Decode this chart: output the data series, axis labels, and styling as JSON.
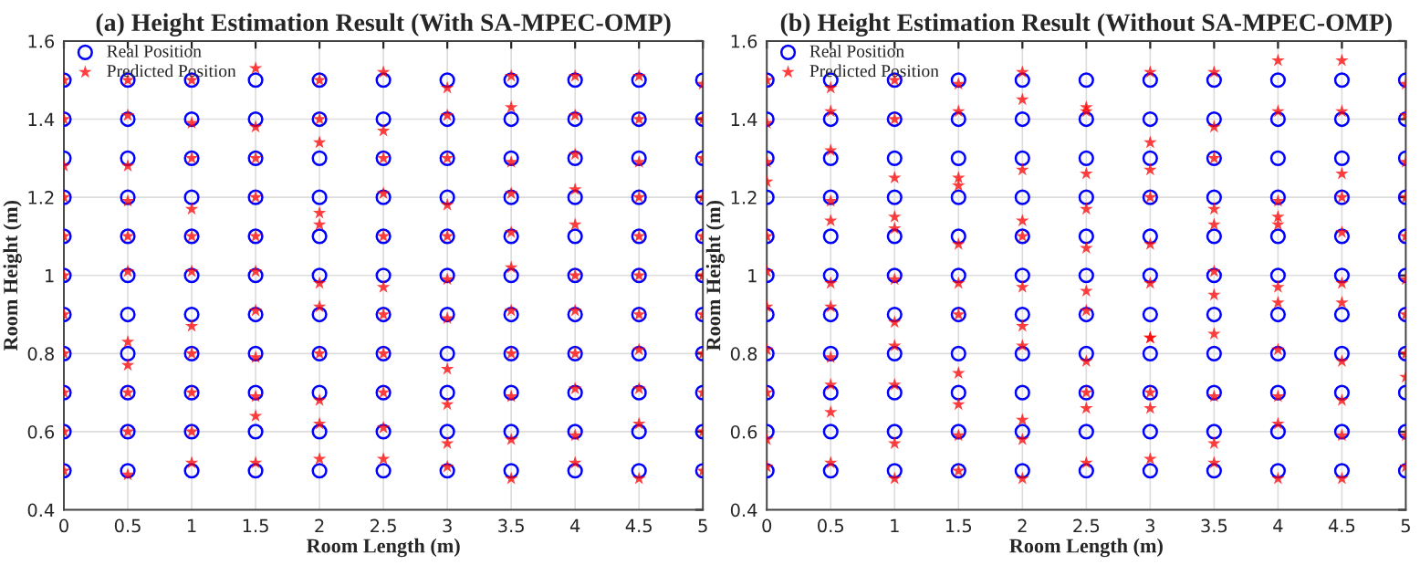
{
  "chart_data": [
    {
      "type": "scatter",
      "title": "(a) Height Estimation Result (With SA-MPEC-OMP)",
      "xlabel": "Room Length (m)",
      "ylabel": "Room Height (m)",
      "xlim": [
        0,
        5
      ],
      "xticks": [
        0,
        0.5,
        1,
        1.5,
        2,
        2.5,
        3,
        3.5,
        4,
        4.5,
        5
      ],
      "ylim": [
        0.4,
        1.6
      ],
      "yticks": [
        0.4,
        0.6,
        0.8,
        1,
        1.2,
        1.4,
        1.6
      ],
      "grid": true,
      "legend": "top left",
      "series": [
        {
          "name": "Real Position",
          "color": "#0000ff",
          "marker": "circle",
          "x": [
            0,
            0,
            0,
            0,
            0,
            0,
            0,
            0,
            0,
            0,
            0,
            0.5,
            0.5,
            0.5,
            0.5,
            0.5,
            0.5,
            0.5,
            0.5,
            0.5,
            0.5,
            0.5,
            1,
            1,
            1,
            1,
            1,
            1,
            1,
            1,
            1,
            1,
            1,
            1.5,
            1.5,
            1.5,
            1.5,
            1.5,
            1.5,
            1.5,
            1.5,
            1.5,
            1.5,
            1.5,
            2,
            2,
            2,
            2,
            2,
            2,
            2,
            2,
            2,
            2,
            2,
            2.5,
            2.5,
            2.5,
            2.5,
            2.5,
            2.5,
            2.5,
            2.5,
            2.5,
            2.5,
            2.5,
            3,
            3,
            3,
            3,
            3,
            3,
            3,
            3,
            3,
            3,
            3,
            3.5,
            3.5,
            3.5,
            3.5,
            3.5,
            3.5,
            3.5,
            3.5,
            3.5,
            3.5,
            3.5,
            4,
            4,
            4,
            4,
            4,
            4,
            4,
            4,
            4,
            4,
            4,
            4.5,
            4.5,
            4.5,
            4.5,
            4.5,
            4.5,
            4.5,
            4.5,
            4.5,
            4.5,
            4.5,
            5,
            5,
            5,
            5,
            5,
            5,
            5,
            5,
            5,
            5,
            5
          ],
          "values": [
            1.5,
            1.4,
            1.3,
            1.2,
            1.1,
            1.0,
            0.9,
            0.8,
            0.7,
            0.6,
            0.5,
            1.5,
            1.4,
            1.3,
            1.2,
            1.1,
            1.0,
            0.9,
            0.8,
            0.7,
            0.6,
            0.5,
            1.5,
            1.4,
            1.3,
            1.2,
            1.1,
            1.0,
            0.9,
            0.8,
            0.7,
            0.6,
            0.5,
            1.5,
            1.4,
            1.3,
            1.2,
            1.1,
            1.0,
            0.9,
            0.8,
            0.7,
            0.6,
            0.5,
            1.5,
            1.4,
            1.3,
            1.2,
            1.1,
            1.0,
            0.9,
            0.8,
            0.7,
            0.6,
            0.5,
            1.5,
            1.4,
            1.3,
            1.2,
            1.1,
            1.0,
            0.9,
            0.8,
            0.7,
            0.6,
            0.5,
            1.5,
            1.4,
            1.3,
            1.2,
            1.1,
            1.0,
            0.9,
            0.8,
            0.7,
            0.6,
            0.5,
            1.5,
            1.4,
            1.3,
            1.2,
            1.1,
            1.0,
            0.9,
            0.8,
            0.7,
            0.6,
            0.5,
            1.5,
            1.4,
            1.3,
            1.2,
            1.1,
            1.0,
            0.9,
            0.8,
            0.7,
            0.6,
            0.5,
            1.5,
            1.4,
            1.3,
            1.2,
            1.1,
            1.0,
            0.9,
            0.8,
            0.7,
            0.6,
            0.5,
            1.5,
            1.4,
            1.3,
            1.2,
            1.1,
            1.0,
            0.9,
            0.8,
            0.7,
            0.6,
            0.5
          ]
        },
        {
          "name": "Predicted Position",
          "color": "#ff0000",
          "marker": "star",
          "x": [
            0,
            0,
            0,
            0,
            0,
            0,
            0,
            0,
            0,
            0,
            0,
            0.5,
            0.5,
            0.5,
            0.5,
            0.5,
            0.5,
            0.5,
            0.5,
            0.5,
            0.5,
            0.5,
            1,
            1,
            1,
            1,
            1,
            1,
            1,
            1,
            1,
            1,
            1,
            1.5,
            1.5,
            1.5,
            1.5,
            1.5,
            1.5,
            1.5,
            1.5,
            1.5,
            1.5,
            1.5,
            2,
            2,
            2,
            2,
            2,
            2,
            2,
            2,
            2,
            2,
            2,
            2.5,
            2.5,
            2.5,
            2.5,
            2.5,
            2.5,
            2.5,
            2.5,
            2.5,
            2.5,
            2.5,
            3,
            3,
            3,
            3,
            3,
            3,
            3,
            3,
            3,
            3,
            3,
            3.5,
            3.5,
            3.5,
            3.5,
            3.5,
            3.5,
            3.5,
            3.5,
            3.5,
            3.5,
            3.5,
            4,
            4,
            4,
            4,
            4,
            4,
            4,
            4,
            4,
            4,
            4,
            4.5,
            4.5,
            4.5,
            4.5,
            4.5,
            4.5,
            4.5,
            4.5,
            4.5,
            4.5,
            4.5,
            5,
            5,
            5,
            5,
            5,
            5,
            5,
            5,
            5,
            5,
            5
          ],
          "values": [
            1.5,
            1.4,
            1.28,
            1.2,
            1.1,
            1.0,
            0.9,
            0.8,
            0.7,
            0.6,
            0.5,
            1.5,
            1.41,
            1.28,
            1.19,
            1.1,
            1.01,
            0.83,
            0.77,
            0.7,
            0.6,
            0.49,
            1.5,
            1.39,
            1.3,
            1.17,
            1.1,
            1.01,
            0.87,
            0.8,
            0.7,
            0.6,
            0.52,
            1.53,
            1.38,
            1.3,
            1.2,
            1.1,
            1.01,
            0.91,
            0.79,
            0.69,
            0.64,
            0.52,
            1.5,
            1.4,
            1.34,
            1.16,
            1.13,
            0.98,
            0.92,
            0.8,
            0.68,
            0.62,
            0.53,
            1.52,
            1.37,
            1.3,
            1.21,
            1.1,
            0.97,
            0.9,
            0.8,
            0.7,
            0.61,
            0.53,
            1.48,
            1.41,
            1.3,
            1.18,
            1.1,
            0.99,
            0.89,
            0.76,
            0.67,
            0.57,
            0.51,
            1.51,
            1.43,
            1.29,
            1.21,
            1.11,
            1.02,
            0.91,
            0.8,
            0.69,
            0.58,
            0.48,
            1.51,
            1.41,
            1.31,
            1.22,
            1.13,
            1.0,
            0.91,
            0.8,
            0.71,
            0.59,
            0.52,
            1.51,
            1.4,
            1.29,
            1.2,
            1.1,
            1.0,
            0.9,
            0.81,
            0.71,
            0.62,
            0.48,
            1.49,
            1.4,
            1.3,
            1.2,
            1.1,
            1.0,
            0.9,
            0.8,
            0.7,
            0.6,
            0.5
          ]
        }
      ]
    },
    {
      "type": "scatter",
      "title": "(b) Height Estimation Result (Without SA-MPEC-OMP)",
      "xlabel": "Room Length (m)",
      "ylabel": "Room Height (m)",
      "xlim": [
        0,
        5
      ],
      "xticks": [
        0,
        0.5,
        1,
        1.5,
        2,
        2.5,
        3,
        3.5,
        4,
        4.5,
        5
      ],
      "ylim": [
        0.4,
        1.6
      ],
      "yticks": [
        0.4,
        0.6,
        0.8,
        1,
        1.2,
        1.4,
        1.6
      ],
      "grid": true,
      "legend": "top left",
      "series": [
        {
          "name": "Real Position",
          "color": "#0000ff",
          "marker": "circle",
          "x": [
            0,
            0,
            0,
            0,
            0,
            0,
            0,
            0,
            0,
            0,
            0,
            0.5,
            0.5,
            0.5,
            0.5,
            0.5,
            0.5,
            0.5,
            0.5,
            0.5,
            0.5,
            0.5,
            1,
            1,
            1,
            1,
            1,
            1,
            1,
            1,
            1,
            1,
            1,
            1.5,
            1.5,
            1.5,
            1.5,
            1.5,
            1.5,
            1.5,
            1.5,
            1.5,
            1.5,
            1.5,
            2,
            2,
            2,
            2,
            2,
            2,
            2,
            2,
            2,
            2,
            2,
            2.5,
            2.5,
            2.5,
            2.5,
            2.5,
            2.5,
            2.5,
            2.5,
            2.5,
            2.5,
            2.5,
            3,
            3,
            3,
            3,
            3,
            3,
            3,
            3,
            3,
            3,
            3,
            3.5,
            3.5,
            3.5,
            3.5,
            3.5,
            3.5,
            3.5,
            3.5,
            3.5,
            3.5,
            3.5,
            4,
            4,
            4,
            4,
            4,
            4,
            4,
            4,
            4,
            4,
            4,
            4.5,
            4.5,
            4.5,
            4.5,
            4.5,
            4.5,
            4.5,
            4.5,
            4.5,
            4.5,
            4.5,
            5,
            5,
            5,
            5,
            5,
            5,
            5,
            5,
            5,
            5,
            5
          ],
          "values": [
            1.5,
            1.4,
            1.3,
            1.2,
            1.1,
            1.0,
            0.9,
            0.8,
            0.7,
            0.6,
            0.5,
            1.5,
            1.4,
            1.3,
            1.2,
            1.1,
            1.0,
            0.9,
            0.8,
            0.7,
            0.6,
            0.5,
            1.5,
            1.4,
            1.3,
            1.2,
            1.1,
            1.0,
            0.9,
            0.8,
            0.7,
            0.6,
            0.5,
            1.5,
            1.4,
            1.3,
            1.2,
            1.1,
            1.0,
            0.9,
            0.8,
            0.7,
            0.6,
            0.5,
            1.5,
            1.4,
            1.3,
            1.2,
            1.1,
            1.0,
            0.9,
            0.8,
            0.7,
            0.6,
            0.5,
            1.5,
            1.4,
            1.3,
            1.2,
            1.1,
            1.0,
            0.9,
            0.8,
            0.7,
            0.6,
            0.5,
            1.5,
            1.4,
            1.3,
            1.2,
            1.1,
            1.0,
            0.9,
            0.8,
            0.7,
            0.6,
            0.5,
            1.5,
            1.4,
            1.3,
            1.2,
            1.1,
            1.0,
            0.9,
            0.8,
            0.7,
            0.6,
            0.5,
            1.5,
            1.4,
            1.3,
            1.2,
            1.1,
            1.0,
            0.9,
            0.8,
            0.7,
            0.6,
            0.5,
            1.5,
            1.4,
            1.3,
            1.2,
            1.1,
            1.0,
            0.9,
            0.8,
            0.7,
            0.6,
            0.5,
            1.5,
            1.4,
            1.3,
            1.2,
            1.1,
            1.0,
            0.9,
            0.8,
            0.7,
            0.6,
            0.5
          ]
        },
        {
          "name": "Predicted Position",
          "color": "#ff0000",
          "marker": "star",
          "x": [
            0,
            0,
            0,
            0,
            0,
            0,
            0,
            0,
            0,
            0,
            0,
            0.5,
            0.5,
            0.5,
            0.5,
            0.5,
            0.5,
            0.5,
            0.5,
            0.5,
            0.5,
            0.5,
            1,
            1,
            1,
            1,
            1,
            1,
            1,
            1,
            1,
            1,
            1,
            1.5,
            1.5,
            1.5,
            1.5,
            1.5,
            1.5,
            1.5,
            1.5,
            1.5,
            1.5,
            1.5,
            2,
            2,
            2,
            2,
            2,
            2,
            2,
            2,
            2,
            2,
            2,
            2.5,
            2.5,
            2.5,
            2.5,
            2.5,
            2.5,
            2.5,
            2.5,
            2.5,
            2.5,
            2.5,
            3,
            3,
            3,
            3,
            3,
            3,
            3,
            3,
            3,
            3,
            3,
            3.5,
            3.5,
            3.5,
            3.5,
            3.5,
            3.5,
            3.5,
            3.5,
            3.5,
            3.5,
            3.5,
            4,
            4,
            4,
            4,
            4,
            4,
            4,
            4,
            4,
            4,
            4,
            4.5,
            4.5,
            4.5,
            4.5,
            4.5,
            4.5,
            4.5,
            4.5,
            4.5,
            4.5,
            4.5,
            5,
            5,
            5,
            5,
            5,
            5,
            5,
            5,
            5,
            5,
            5
          ],
          "values": [
            1.5,
            1.39,
            1.29,
            1.24,
            1.1,
            1.01,
            0.92,
            0.81,
            0.7,
            0.58,
            0.51,
            1.48,
            1.42,
            1.32,
            1.19,
            1.14,
            0.98,
            0.92,
            0.79,
            0.72,
            0.65,
            0.52,
            1.5,
            1.4,
            1.25,
            1.15,
            1.12,
            0.99,
            0.88,
            0.82,
            0.72,
            0.57,
            0.48,
            1.49,
            1.42,
            1.25,
            1.23,
            1.08,
            0.98,
            0.9,
            0.75,
            0.67,
            0.59,
            0.5,
            1.52,
            1.45,
            1.27,
            1.14,
            1.1,
            0.97,
            0.87,
            0.82,
            0.63,
            0.58,
            0.48,
            1.43,
            1.42,
            1.26,
            1.17,
            1.07,
            0.96,
            0.91,
            0.78,
            0.7,
            0.66,
            0.52,
            1.52,
            1.34,
            1.27,
            1.2,
            1.08,
            0.98,
            0.84,
            0.84,
            0.7,
            0.66,
            0.53,
            1.52,
            1.38,
            1.3,
            1.17,
            1.13,
            1.01,
            0.95,
            0.85,
            0.69,
            0.57,
            0.52,
            1.55,
            1.42,
            1.19,
            1.15,
            1.13,
            0.97,
            0.93,
            0.81,
            0.69,
            0.62,
            0.48,
            1.55,
            1.42,
            1.26,
            1.2,
            1.11,
            0.98,
            0.93,
            0.78,
            0.68,
            0.59,
            0.48,
            1.49,
            1.41,
            1.29,
            1.2,
            1.1,
            0.99,
            0.9,
            0.8,
            0.74,
            0.59,
            0.51
          ]
        }
      ]
    }
  ]
}
